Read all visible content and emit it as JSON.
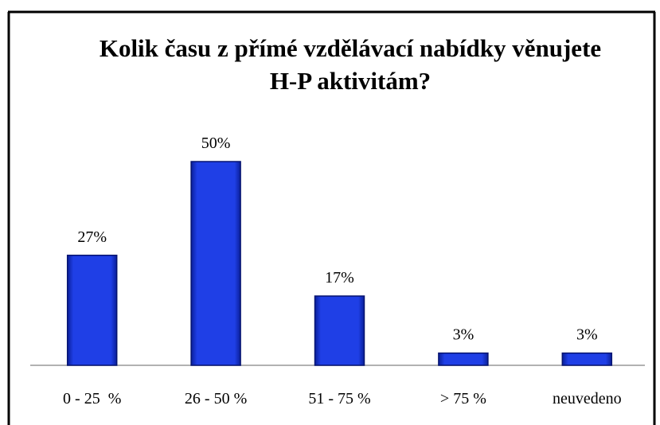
{
  "chart_data": {
    "type": "bar",
    "title": "Kolik času z přímé vzdělávací nabídky věnujete H-P aktivitám?",
    "categories": [
      "0 - 25  %",
      "26 - 50 %",
      "51 - 75 %",
      "> 75 %",
      "neuvedeno"
    ],
    "values": [
      27,
      50,
      17,
      3,
      3
    ],
    "value_labels": [
      "27%",
      "50%",
      "17%",
      "3%",
      "3%"
    ],
    "color": "#1f3fe6"
  }
}
